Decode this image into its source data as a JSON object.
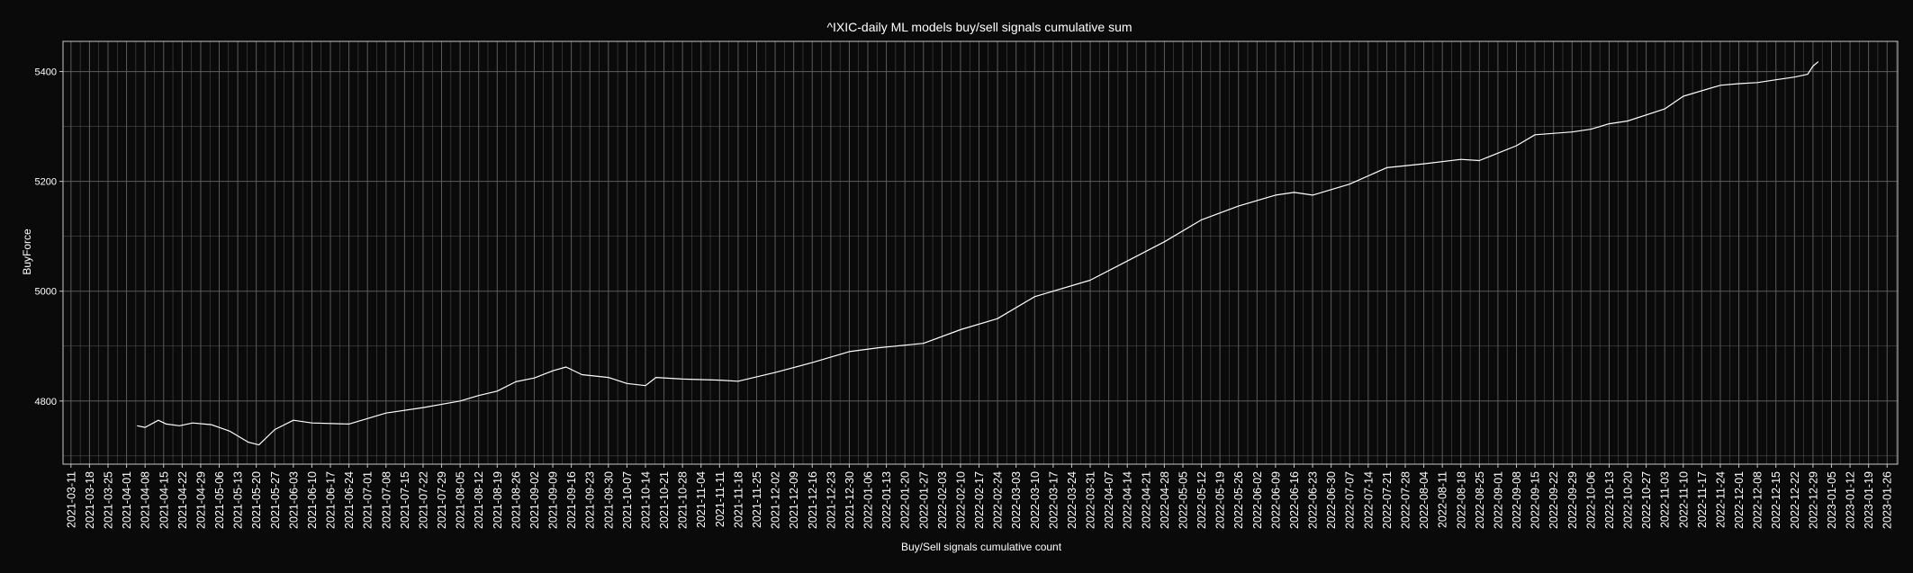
{
  "chart_data": {
    "type": "line",
    "title": "^IXIC-daily ML models buy/sell signals cumulative sum",
    "xlabel": "Buy/Sell signals cumulative count",
    "ylabel": "BuyForce",
    "xlim": [
      "2021-03-08",
      "2023-01-30"
    ],
    "ylim": [
      4685,
      5455
    ],
    "yticks": [
      4800,
      5000,
      5200,
      5400
    ],
    "grid": true,
    "colors": {
      "background": "#0a0a0a",
      "line": "#ffffff",
      "grid": "#5a5a5a",
      "frame": "#c8c8c8"
    },
    "xticks": [
      "2021-03-11",
      "2021-03-18",
      "2021-03-25",
      "2021-04-01",
      "2021-04-08",
      "2021-04-15",
      "2021-04-22",
      "2021-04-29",
      "2021-05-06",
      "2021-05-13",
      "2021-05-20",
      "2021-05-27",
      "2021-06-03",
      "2021-06-10",
      "2021-06-17",
      "2021-06-24",
      "2021-07-01",
      "2021-07-08",
      "2021-07-15",
      "2021-07-22",
      "2021-07-29",
      "2021-08-05",
      "2021-08-12",
      "2021-08-19",
      "2021-08-26",
      "2021-09-02",
      "2021-09-09",
      "2021-09-16",
      "2021-09-23",
      "2021-09-30",
      "2021-10-07",
      "2021-10-14",
      "2021-10-21",
      "2021-10-28",
      "2021-11-04",
      "2021-11-11",
      "2021-11-18",
      "2021-11-25",
      "2021-12-02",
      "2021-12-09",
      "2021-12-16",
      "2021-12-23",
      "2021-12-30",
      "2022-01-06",
      "2022-01-13",
      "2022-01-20",
      "2022-01-27",
      "2022-02-03",
      "2022-02-10",
      "2022-02-17",
      "2022-02-24",
      "2022-03-03",
      "2022-03-10",
      "2022-03-17",
      "2022-03-24",
      "2022-03-31",
      "2022-04-07",
      "2022-04-14",
      "2022-04-21",
      "2022-04-28",
      "2022-05-05",
      "2022-05-12",
      "2022-05-19",
      "2022-05-26",
      "2022-06-02",
      "2022-06-09",
      "2022-06-16",
      "2022-06-23",
      "2022-06-30",
      "2022-07-07",
      "2022-07-14",
      "2022-07-21",
      "2022-07-28",
      "2022-08-04",
      "2022-08-11",
      "2022-08-18",
      "2022-08-25",
      "2022-09-01",
      "2022-09-08",
      "2022-09-15",
      "2022-09-22",
      "2022-09-29",
      "2022-10-06",
      "2022-10-13",
      "2022-10-20",
      "2022-10-27",
      "2022-11-03",
      "2022-11-10",
      "2022-11-17",
      "2022-11-24",
      "2022-12-01",
      "2022-12-08",
      "2022-12-15",
      "2022-12-22",
      "2022-12-29",
      "2023-01-05",
      "2023-01-12",
      "2023-01-19",
      "2023-01-26"
    ],
    "series": [
      {
        "x": [
          "2021-04-05",
          "2021-04-08",
          "2021-04-13",
          "2021-04-16",
          "2021-04-21",
          "2021-04-26",
          "2021-05-03",
          "2021-05-10",
          "2021-05-17",
          "2021-05-21",
          "2021-05-27",
          "2021-06-03",
          "2021-06-10",
          "2021-06-24",
          "2021-07-08",
          "2021-07-22",
          "2021-08-05",
          "2021-08-12",
          "2021-08-19",
          "2021-08-26",
          "2021-09-02",
          "2021-09-09",
          "2021-09-14",
          "2021-09-20",
          "2021-09-30",
          "2021-10-07",
          "2021-10-14",
          "2021-10-18",
          "2021-10-28",
          "2021-11-11",
          "2021-11-18",
          "2021-12-02",
          "2021-12-16",
          "2021-12-30",
          "2022-01-10",
          "2022-01-27",
          "2022-02-10",
          "2022-02-24",
          "2022-03-10",
          "2022-03-17",
          "2022-03-31",
          "2022-04-14",
          "2022-04-28",
          "2022-05-12",
          "2022-05-26",
          "2022-06-09",
          "2022-06-16",
          "2022-06-23",
          "2022-07-07",
          "2022-07-21",
          "2022-08-04",
          "2022-08-18",
          "2022-08-25",
          "2022-09-08",
          "2022-09-15",
          "2022-09-29",
          "2022-10-06",
          "2022-10-13",
          "2022-10-20",
          "2022-11-03",
          "2022-11-10",
          "2022-11-24",
          "2022-12-01",
          "2022-12-08",
          "2022-12-15",
          "2022-12-22",
          "2022-12-27",
          "2022-12-29",
          "2022-12-31"
        ],
        "y": [
          4755,
          4752,
          4765,
          4758,
          4755,
          4760,
          4757,
          4745,
          4725,
          4720,
          4748,
          4765,
          4760,
          4758,
          4778,
          4788,
          4800,
          4810,
          4818,
          4835,
          4842,
          4855,
          4862,
          4848,
          4843,
          4832,
          4828,
          4843,
          4840,
          4838,
          4836,
          4852,
          4870,
          4890,
          4897,
          4905,
          4930,
          4950,
          4990,
          5000,
          5020,
          5055,
          5090,
          5130,
          5155,
          5175,
          5180,
          5175,
          5195,
          5225,
          5232,
          5240,
          5238,
          5265,
          5285,
          5290,
          5295,
          5305,
          5310,
          5332,
          5355,
          5375,
          5378,
          5380,
          5385,
          5390,
          5395,
          5410,
          5418
        ]
      }
    ]
  }
}
